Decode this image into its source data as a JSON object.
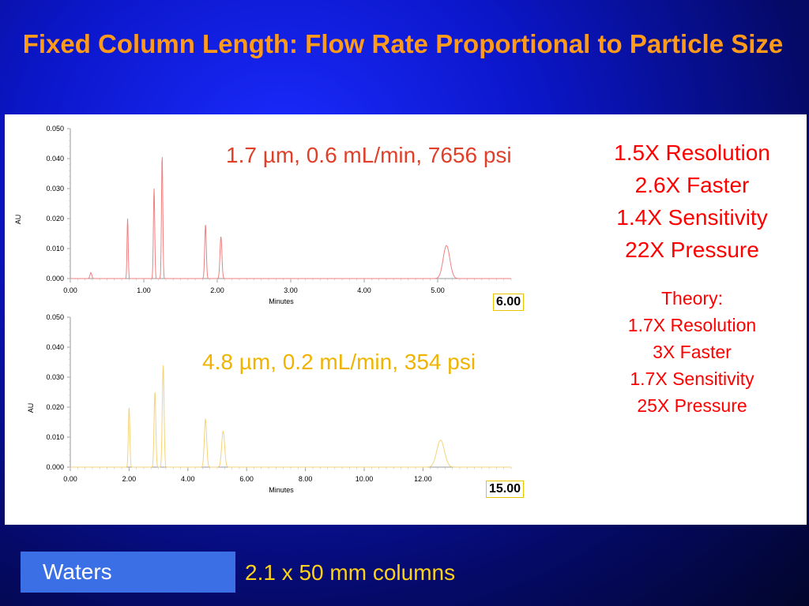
{
  "slide": {
    "title": "Fixed Column Length: Flow Rate Proportional to Particle Size",
    "results": [
      "1.5X Resolution",
      "2.6X Faster",
      "1.4X Sensitivity",
      "22X Pressure"
    ],
    "theory": [
      "Theory:",
      "1.7X Resolution",
      "3X Faster",
      "1.7X Sensitivity",
      "25X Pressure"
    ],
    "footer": {
      "brand": "Waters",
      "note": "2.1 x 50 mm columns"
    },
    "colors": {
      "title": "#ff9a1a",
      "results": "#ff0000",
      "top_trace": "#f08080",
      "bottom_trace": "#f5d37a",
      "footer_box": "#3b6fe6",
      "footer_note": "#ffd21a"
    }
  },
  "chart_data": [
    {
      "type": "line",
      "title": "",
      "annotation": "1.7 µm, 0.6 mL/min, 7656 psi",
      "end_label": "6.00",
      "xlabel": "Minutes",
      "ylabel": "AU",
      "xlim": [
        0,
        6
      ],
      "ylim": [
        0,
        0.05
      ],
      "xticks": [
        "0.00",
        "1.00",
        "2.00",
        "3.00",
        "4.00",
        "5.00"
      ],
      "yticks": [
        "0.000",
        "0.010",
        "0.020",
        "0.030",
        "0.040",
        "0.050"
      ],
      "peaks": [
        {
          "t": 0.28,
          "h": 0.002,
          "w": 0.012
        },
        {
          "t": 0.78,
          "h": 0.02,
          "w": 0.008
        },
        {
          "t": 1.14,
          "h": 0.03,
          "w": 0.009
        },
        {
          "t": 1.25,
          "h": 0.041,
          "w": 0.009
        },
        {
          "t": 1.84,
          "h": 0.018,
          "w": 0.011
        },
        {
          "t": 2.05,
          "h": 0.014,
          "w": 0.013
        },
        {
          "t": 5.12,
          "h": 0.011,
          "w": 0.045
        }
      ]
    },
    {
      "type": "line",
      "title": "",
      "annotation": "4.8 µm, 0.2 mL/min, 354 psi",
      "end_label": "15.00",
      "xlabel": "Minutes",
      "ylabel": "AU",
      "xlim": [
        0,
        15
      ],
      "ylim": [
        0,
        0.05
      ],
      "xticks": [
        "0.00",
        "2.00",
        "4.00",
        "6.00",
        "8.00",
        "10.00",
        "12.00"
      ],
      "yticks": [
        "0.000",
        "0.010",
        "0.020",
        "0.030",
        "0.040",
        "0.050"
      ],
      "peaks": [
        {
          "t": 2.0,
          "h": 0.02,
          "w": 0.025
        },
        {
          "t": 2.88,
          "h": 0.025,
          "w": 0.03
        },
        {
          "t": 3.16,
          "h": 0.034,
          "w": 0.03
        },
        {
          "t": 4.6,
          "h": 0.016,
          "w": 0.04
        },
        {
          "t": 5.2,
          "h": 0.012,
          "w": 0.05
        },
        {
          "t": 12.6,
          "h": 0.009,
          "w": 0.13
        }
      ]
    }
  ]
}
